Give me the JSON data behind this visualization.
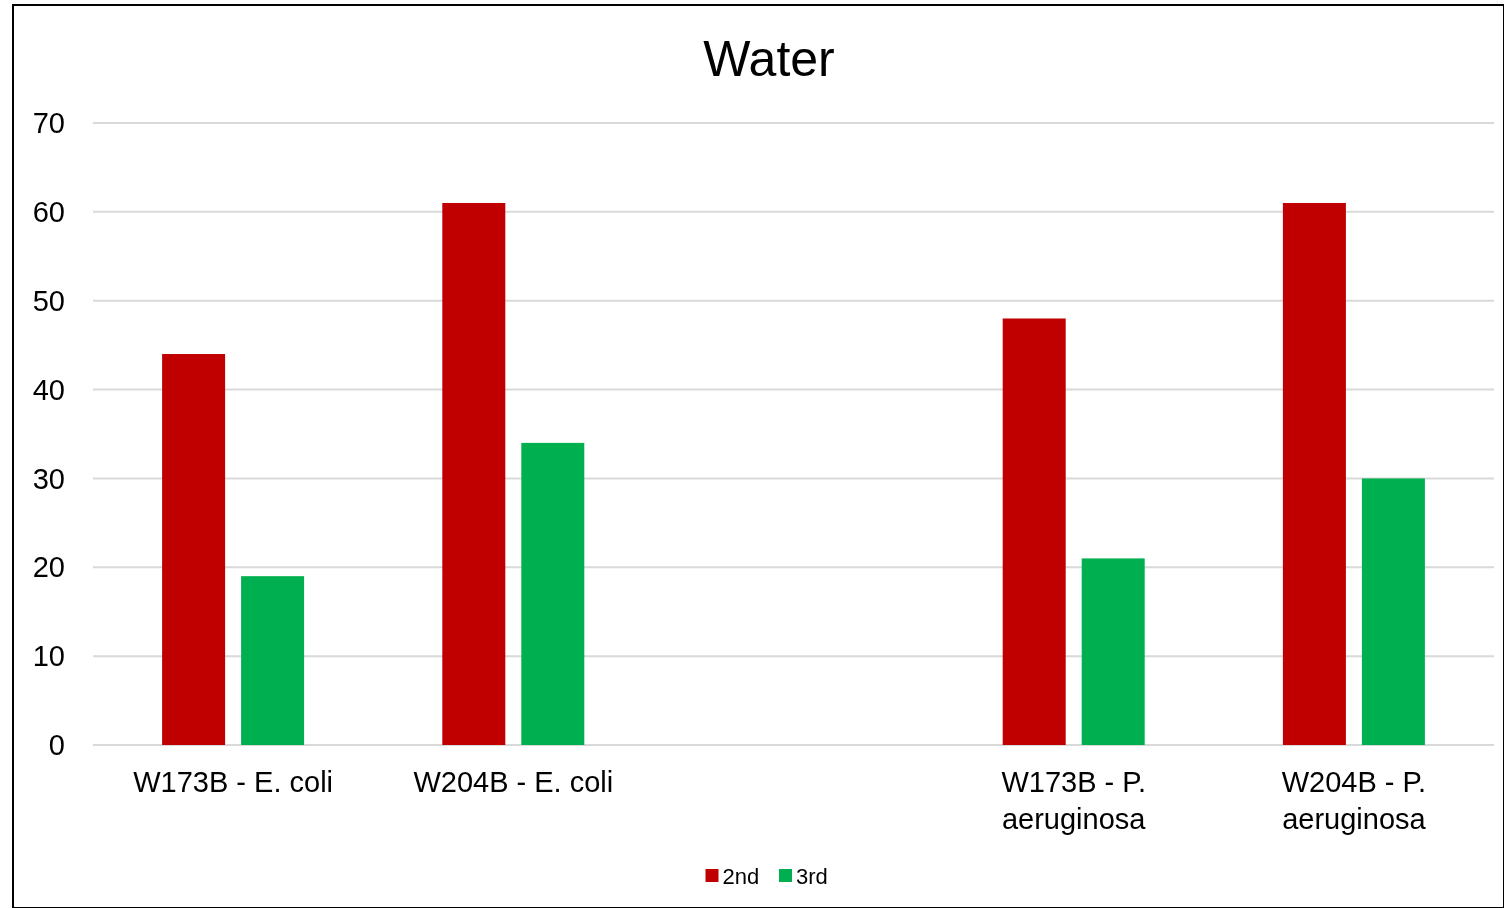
{
  "chart_data": {
    "type": "bar",
    "title": "Water",
    "categories": [
      "W173B - E. coli",
      "W204B - E. coli",
      null,
      "W173B - P. aeruginosa",
      "W204B - P. aeruginosa"
    ],
    "series": [
      {
        "name": "2nd",
        "color": "#c00000",
        "values": [
          44,
          61,
          null,
          48,
          61
        ]
      },
      {
        "name": "3rd",
        "color": "#00b050",
        "values": [
          19,
          34,
          null,
          21,
          30
        ]
      }
    ],
    "ylim": [
      0,
      70
    ],
    "yticks": [
      0,
      10,
      20,
      30,
      40,
      50,
      60,
      70
    ],
    "grid": "y",
    "legend": "bottom"
  }
}
